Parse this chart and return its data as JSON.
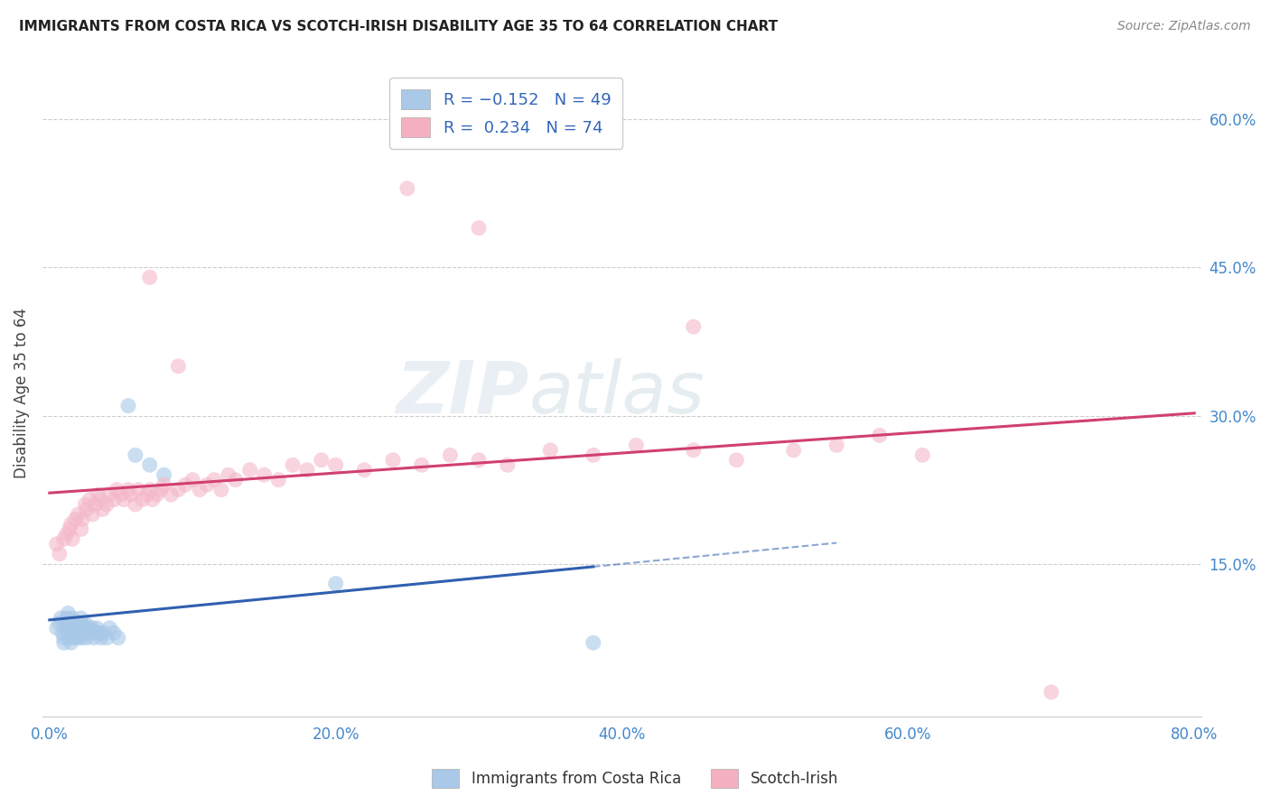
{
  "title": "IMMIGRANTS FROM COSTA RICA VS SCOTCH-IRISH DISABILITY AGE 35 TO 64 CORRELATION CHART",
  "source": "Source: ZipAtlas.com",
  "ylabel": "Disability Age 35 to 64",
  "xlim": [
    -0.005,
    0.805
  ],
  "ylim": [
    -0.005,
    0.65
  ],
  "xtick_labels": [
    "0.0%",
    "20.0%",
    "40.0%",
    "60.0%",
    "80.0%"
  ],
  "xtick_vals": [
    0.0,
    0.2,
    0.4,
    0.6,
    0.8
  ],
  "ytick_labels": [
    "15.0%",
    "30.0%",
    "45.0%",
    "60.0%"
  ],
  "ytick_vals": [
    0.15,
    0.3,
    0.45,
    0.6
  ],
  "blue_color": "#a8c8e8",
  "pink_color": "#f4b8c8",
  "blue_line_color": "#3060b0",
  "pink_line_color": "#d04070",
  "watermark_zip": "ZIP",
  "watermark_atlas": "atlas",
  "blue_points_x": [
    0.005,
    0.007,
    0.008,
    0.009,
    0.01,
    0.01,
    0.011,
    0.012,
    0.012,
    0.013,
    0.014,
    0.014,
    0.015,
    0.015,
    0.016,
    0.016,
    0.017,
    0.018,
    0.018,
    0.019,
    0.02,
    0.02,
    0.021,
    0.022,
    0.022,
    0.023,
    0.024,
    0.025,
    0.025,
    0.026,
    0.027,
    0.028,
    0.03,
    0.031,
    0.032,
    0.033,
    0.035,
    0.036,
    0.038,
    0.04,
    0.042,
    0.045,
    0.048,
    0.055,
    0.06,
    0.07,
    0.08,
    0.2,
    0.38
  ],
  "blue_points_y": [
    0.085,
    0.09,
    0.095,
    0.08,
    0.07,
    0.075,
    0.085,
    0.09,
    0.095,
    0.1,
    0.075,
    0.08,
    0.07,
    0.085,
    0.09,
    0.095,
    0.08,
    0.075,
    0.085,
    0.09,
    0.075,
    0.08,
    0.085,
    0.09,
    0.095,
    0.075,
    0.08,
    0.085,
    0.09,
    0.075,
    0.08,
    0.085,
    0.085,
    0.075,
    0.08,
    0.085,
    0.08,
    0.075,
    0.08,
    0.075,
    0.085,
    0.08,
    0.075,
    0.31,
    0.26,
    0.25,
    0.24,
    0.13,
    0.07
  ],
  "pink_points_x": [
    0.005,
    0.007,
    0.01,
    0.012,
    0.014,
    0.015,
    0.016,
    0.018,
    0.02,
    0.022,
    0.023,
    0.025,
    0.026,
    0.028,
    0.03,
    0.032,
    0.034,
    0.035,
    0.037,
    0.04,
    0.042,
    0.045,
    0.047,
    0.05,
    0.052,
    0.055,
    0.057,
    0.06,
    0.062,
    0.065,
    0.068,
    0.07,
    0.072,
    0.075,
    0.078,
    0.08,
    0.085,
    0.09,
    0.095,
    0.1,
    0.105,
    0.11,
    0.115,
    0.12,
    0.125,
    0.13,
    0.14,
    0.15,
    0.16,
    0.17,
    0.18,
    0.19,
    0.2,
    0.22,
    0.24,
    0.26,
    0.28,
    0.3,
    0.32,
    0.35,
    0.38,
    0.41,
    0.45,
    0.48,
    0.52,
    0.55,
    0.58,
    0.61,
    0.07,
    0.09,
    0.25,
    0.3,
    0.45,
    0.7
  ],
  "pink_points_y": [
    0.17,
    0.16,
    0.175,
    0.18,
    0.185,
    0.19,
    0.175,
    0.195,
    0.2,
    0.185,
    0.195,
    0.21,
    0.205,
    0.215,
    0.2,
    0.21,
    0.22,
    0.215,
    0.205,
    0.21,
    0.22,
    0.215,
    0.225,
    0.22,
    0.215,
    0.225,
    0.22,
    0.21,
    0.225,
    0.215,
    0.22,
    0.225,
    0.215,
    0.22,
    0.225,
    0.23,
    0.22,
    0.225,
    0.23,
    0.235,
    0.225,
    0.23,
    0.235,
    0.225,
    0.24,
    0.235,
    0.245,
    0.24,
    0.235,
    0.25,
    0.245,
    0.255,
    0.25,
    0.245,
    0.255,
    0.25,
    0.26,
    0.255,
    0.25,
    0.265,
    0.26,
    0.27,
    0.265,
    0.255,
    0.265,
    0.27,
    0.28,
    0.26,
    0.44,
    0.35,
    0.53,
    0.49,
    0.39,
    0.02
  ]
}
